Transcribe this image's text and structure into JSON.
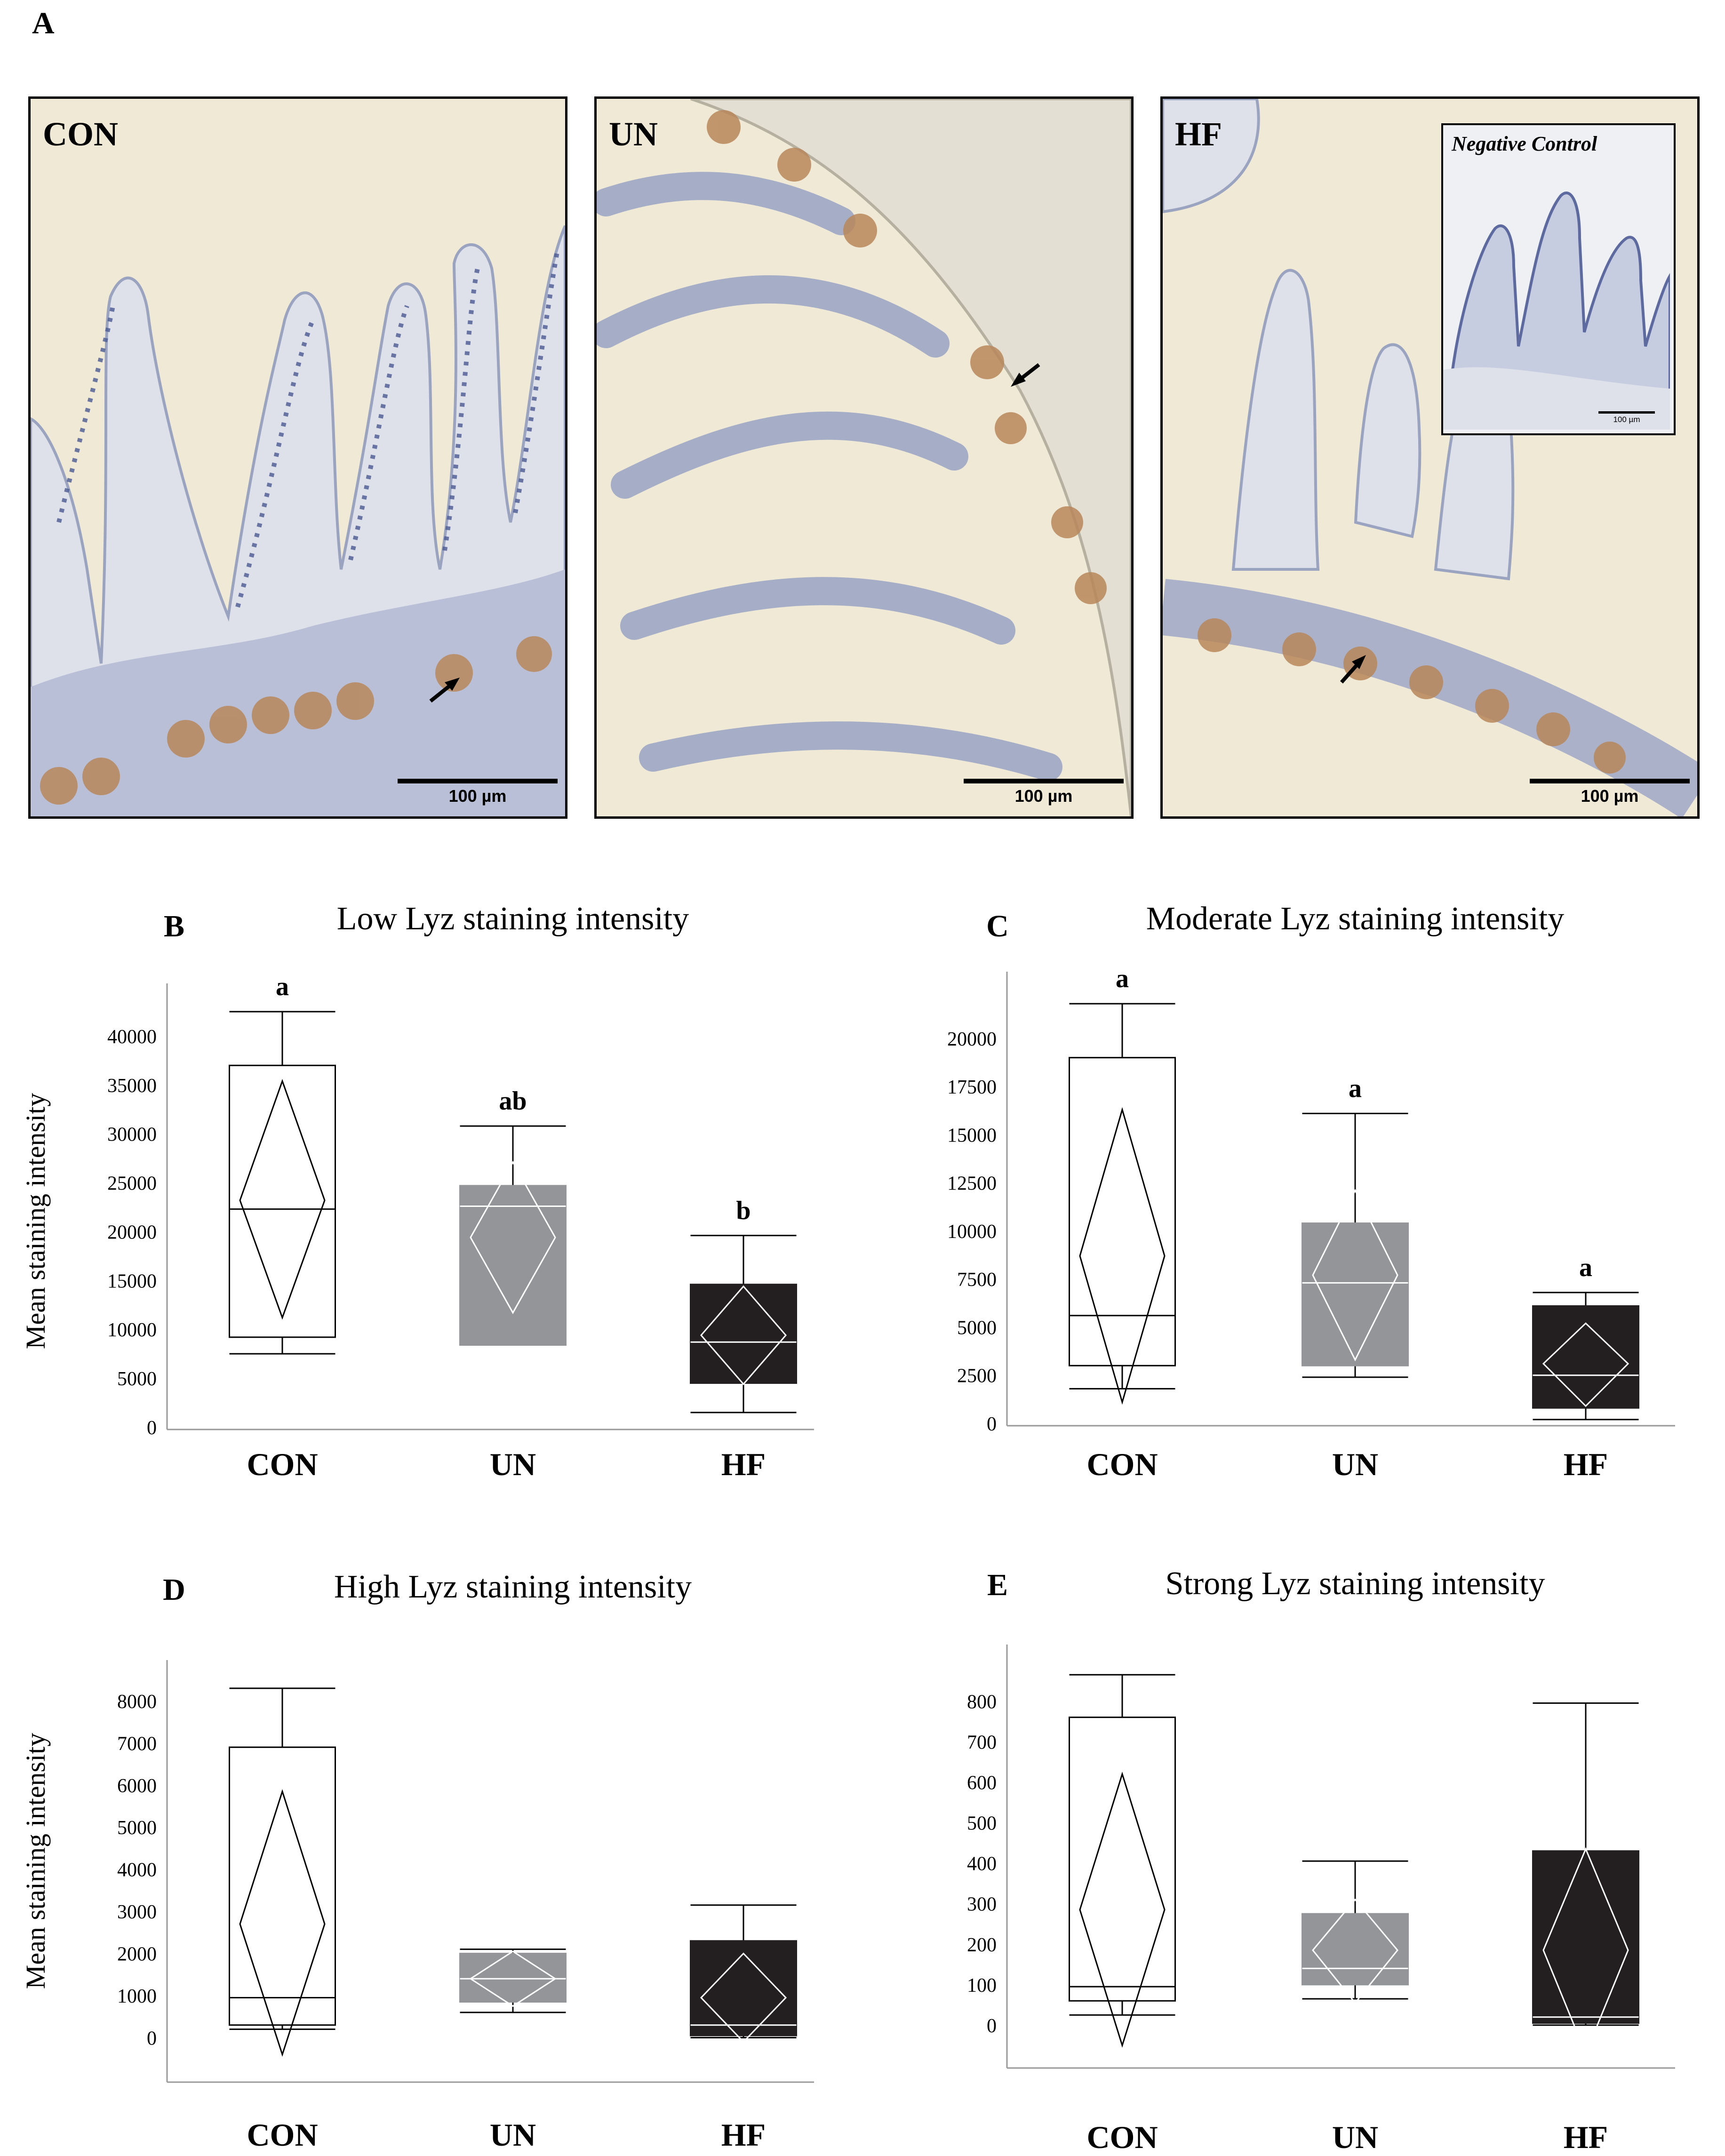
{
  "figure": {
    "panel_a_letter": "A",
    "micrographs": [
      {
        "label": "CON",
        "scale": "100 µm"
      },
      {
        "label": "UN",
        "scale": "100 µm"
      },
      {
        "label": "HF",
        "scale": "100 µm",
        "inset_label": "Negative Control",
        "inset_scale": "100 µm"
      }
    ]
  },
  "colors": {
    "CON": "#ffffff",
    "UN": "#939598",
    "HF": "#231f20",
    "tissue_bg": "#efe9d6",
    "nuclei": "#4a5a92",
    "granules": "#b8875a"
  },
  "chart_data": [
    {
      "letter": "B",
      "type": "box",
      "title": "Low Lyz staining intensity",
      "ylabel": "Mean staining intensity",
      "categories": [
        "CON",
        "UN",
        "HF"
      ],
      "yticks": [
        0,
        5000,
        10000,
        15000,
        20000,
        25000,
        30000,
        35000,
        40000
      ],
      "ylim": [
        0,
        42500
      ],
      "boxes": [
        {
          "name": "CON",
          "min": 7500,
          "q1": 9200,
          "median": 22300,
          "q3": 37000,
          "max": 42500,
          "mean": 23200,
          "ci_low": 11200,
          "ci_high": 35400,
          "letter": "a"
        },
        {
          "name": "UN",
          "min": 8400,
          "q1": 8400,
          "median": 22600,
          "q3": 24700,
          "max": 30800,
          "mean": 19400,
          "ci_low": 11700,
          "ci_high": 27100,
          "letter": "ab"
        },
        {
          "name": "HF",
          "min": 1500,
          "q1": 4500,
          "median": 8700,
          "q3": 14600,
          "max": 19600,
          "mean": 9400,
          "ci_low": 4400,
          "ci_high": 14400,
          "letter": "b"
        }
      ]
    },
    {
      "letter": "C",
      "type": "box",
      "title": "Moderate Lyz staining intensity",
      "ylabel": "",
      "categories": [
        "CON",
        "UN",
        "HF"
      ],
      "yticks": [
        0,
        2500,
        5000,
        7500,
        10000,
        12500,
        15000,
        17500,
        20000
      ],
      "ylim": [
        0,
        22000
      ],
      "boxes": [
        {
          "name": "CON",
          "min": 1800,
          "q1": 3000,
          "median": 5600,
          "q3": 19000,
          "max": 21800,
          "mean": 8700,
          "ci_low": 1100,
          "ci_high": 16300,
          "letter": "a"
        },
        {
          "name": "UN",
          "min": 2400,
          "q1": 3000,
          "median": 7300,
          "q3": 10400,
          "max": 16100,
          "mean": 7700,
          "ci_low": 3300,
          "ci_high": 12100,
          "letter": "a"
        },
        {
          "name": "HF",
          "min": 200,
          "q1": 800,
          "median": 2500,
          "q3": 6100,
          "max": 6800,
          "mean": 3100,
          "ci_low": 900,
          "ci_high": 5200,
          "letter": "a"
        }
      ]
    },
    {
      "letter": "D",
      "type": "box",
      "title": "High Lyz staining intensity",
      "ylabel": "Mean staining intensity",
      "categories": [
        "CON",
        "UN",
        "HF"
      ],
      "yticks": [
        0,
        1000,
        2000,
        3000,
        4000,
        5000,
        6000,
        7000,
        8000
      ],
      "ylim": [
        -1000,
        8300
      ],
      "boxes": [
        {
          "name": "CON",
          "min": 200,
          "q1": 300,
          "median": 950,
          "q3": 6900,
          "max": 8300,
          "mean": 2700,
          "ci_low": -400,
          "ci_high": 5850,
          "letter": ""
        },
        {
          "name": "UN",
          "min": 600,
          "q1": 850,
          "median": 1400,
          "q3": 2000,
          "max": 2100,
          "mean": 1400,
          "ci_low": 750,
          "ci_high": 2050,
          "letter": ""
        },
        {
          "name": "HF",
          "min": 0,
          "q1": 50,
          "median": 300,
          "q3": 2300,
          "max": 3150,
          "mean": 950,
          "ci_low": -100,
          "ci_high": 2000,
          "letter": ""
        }
      ]
    },
    {
      "letter": "E",
      "type": "box",
      "title": "Strong Lyz staining intensity",
      "ylabel": "",
      "categories": [
        "CON",
        "UN",
        "HF"
      ],
      "yticks": [
        0,
        100,
        200,
        300,
        400,
        500,
        600,
        700,
        800
      ],
      "ylim": [
        -100,
        870
      ],
      "boxes": [
        {
          "name": "CON",
          "min": 25,
          "q1": 60,
          "median": 95,
          "q3": 760,
          "max": 865,
          "mean": 285,
          "ci_low": -50,
          "ci_high": 620,
          "letter": ""
        },
        {
          "name": "UN",
          "min": 65,
          "q1": 100,
          "median": 140,
          "q3": 275,
          "max": 405,
          "mean": 185,
          "ci_low": 55,
          "ci_high": 310,
          "letter": ""
        },
        {
          "name": "HF",
          "min": 0,
          "q1": 5,
          "median": 20,
          "q3": 430,
          "max": 795,
          "mean": 185,
          "ci_low": -70,
          "ci_high": 435,
          "letter": ""
        }
      ]
    }
  ]
}
